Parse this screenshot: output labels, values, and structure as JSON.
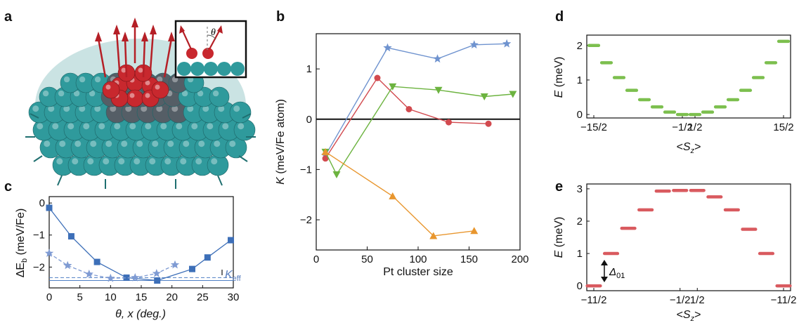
{
  "panels": {
    "a": "a",
    "b": "b",
    "c": "c",
    "d": "d",
    "e": "e"
  },
  "colors": {
    "blue": "#4f7fc4",
    "red": "#d24a4f",
    "green": "#6cb33f",
    "orange": "#e8962e",
    "teal": "#2aa6a6",
    "slate": "#5a7fbf"
  },
  "inset_theta": "θ",
  "chart_data": [
    {
      "panel": "b",
      "type": "line",
      "xlabel": "Pt cluster size",
      "ylabel": "K (meV/Fe atom)",
      "xlim": [
        0,
        200
      ],
      "ylim": [
        -2.6,
        1.7
      ],
      "xticks": [
        0,
        50,
        100,
        150,
        200
      ],
      "yticks": [
        -2,
        -1,
        0,
        1
      ],
      "zero_line": true,
      "series": [
        {
          "color": "#6f93cf",
          "marker": "star",
          "x": [
            9,
            70,
            119,
            155,
            187
          ],
          "y": [
            -0.72,
            1.42,
            1.2,
            1.48,
            1.5
          ]
        },
        {
          "color": "#d24a4f",
          "marker": "circle",
          "x": [
            9,
            60,
            91,
            130,
            169
          ],
          "y": [
            -0.78,
            0.82,
            0.2,
            -0.06,
            -0.09
          ]
        },
        {
          "color": "#6cb33f",
          "marker": "triangle-down",
          "x": [
            9,
            20,
            75,
            120,
            165,
            193
          ],
          "y": [
            -0.65,
            -1.1,
            0.65,
            0.58,
            0.45,
            0.5
          ]
        },
        {
          "color": "#e8962e",
          "marker": "triangle-up",
          "x": [
            9,
            75,
            115,
            155
          ],
          "y": [
            -0.65,
            -1.53,
            -2.32,
            -2.22
          ]
        }
      ]
    },
    {
      "panel": "c",
      "type": "line",
      "xlabel": "θ, x (deg.)",
      "ylabel": "ΔE_b (meV/Fe)",
      "xlim": [
        0,
        30
      ],
      "ylim": [
        -2.65,
        0.2
      ],
      "xticks": [
        0,
        5,
        10,
        15,
        20,
        25,
        30
      ],
      "yticks": [
        0,
        -1,
        -2
      ],
      "annotation": "K_eff",
      "series": [
        {
          "style": "solid",
          "marker": "square",
          "x": [
            0,
            3.6,
            7.8,
            12.6,
            17.6,
            23.3,
            25.8,
            29.6
          ],
          "y": [
            -0.15,
            -1.04,
            -1.84,
            -2.33,
            -2.42,
            -2.06,
            -1.7,
            -1.16
          ]
        },
        {
          "style": "dashed",
          "marker": "star",
          "x": [
            0,
            3,
            6.5,
            10,
            14,
            17.5,
            20.5
          ],
          "y": [
            -1.57,
            -1.95,
            -2.22,
            -2.35,
            -2.33,
            -2.2,
            -1.93
          ]
        }
      ],
      "ref_lines": [
        -2.42,
        -2.33
      ]
    },
    {
      "panel": "d",
      "type": "scatter",
      "xlabel": "<S_z>",
      "ylabel": "E (meV)",
      "ylim": [
        -0.1,
        2.3
      ],
      "xticks": [
        "-15/2",
        "-1/2",
        "1/2",
        "15/2"
      ],
      "yticks": [
        0,
        1,
        2
      ],
      "sz": [
        -7.5,
        -6.5,
        -5.5,
        -4.5,
        -3.5,
        -2.5,
        -1.5,
        -0.5,
        0.5,
        1.5,
        2.5,
        3.5,
        4.5,
        5.5,
        6.5,
        7.5
      ],
      "values": [
        2.0,
        1.5,
        1.07,
        0.7,
        0.43,
        0.22,
        0.07,
        0.0,
        0.0,
        0.07,
        0.22,
        0.43,
        0.7,
        1.07,
        1.5,
        2.12
      ]
    },
    {
      "panel": "e",
      "type": "scatter",
      "xlabel": "<S_z>",
      "ylabel": "E (meV)",
      "ylim": [
        -0.15,
        3.15
      ],
      "xticks": [
        "-11/2",
        "-1/2",
        "1/2",
        "-11/2"
      ],
      "yticks": [
        0,
        1,
        2,
        3
      ],
      "annotation": "Δ01",
      "sz": [
        -5.5,
        -4.5,
        -3.5,
        -2.5,
        -1.5,
        -0.5,
        0.5,
        1.5,
        2.5,
        3.5,
        4.5,
        5.5
      ],
      "values": [
        0.0,
        1.0,
        1.78,
        2.35,
        2.93,
        2.95,
        2.95,
        2.75,
        2.35,
        1.75,
        1.0,
        0.0
      ]
    }
  ]
}
